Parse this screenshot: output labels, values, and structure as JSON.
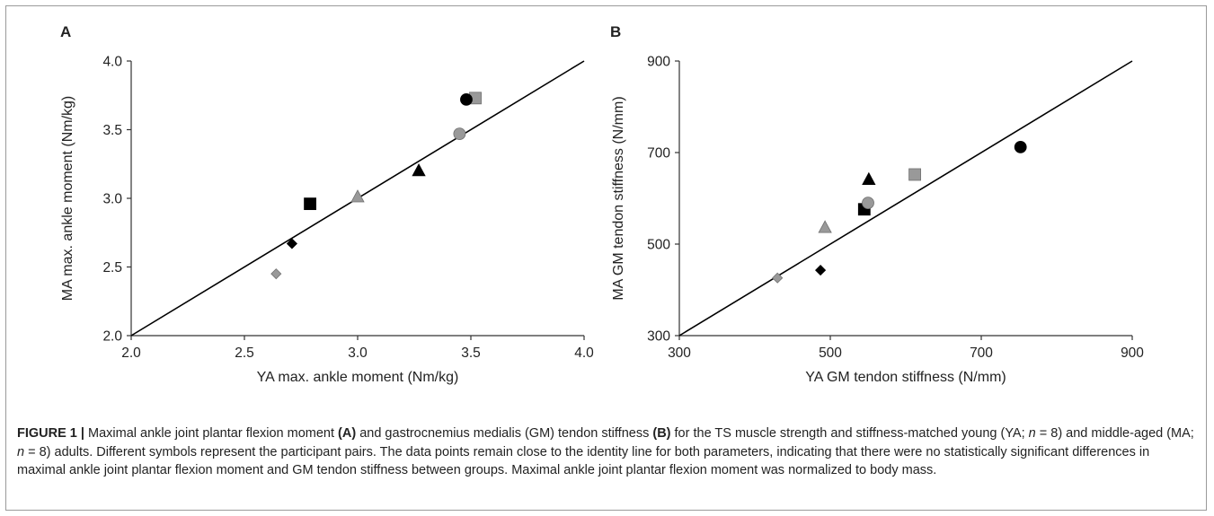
{
  "chart_data": [
    {
      "type": "scatter",
      "panel_label": "A",
      "xlabel": "YA max. ankle moment (Nm/kg)",
      "ylabel": "MA max. ankle moment (Nm/kg)",
      "xlim": [
        2.0,
        4.0
      ],
      "ylim": [
        2.0,
        4.0
      ],
      "xticks": [
        "2.0",
        "2.5",
        "3.0",
        "3.5",
        "4.0"
      ],
      "yticks": [
        "2.0",
        "2.5",
        "3.0",
        "3.5",
        "4.0"
      ],
      "identity_line": true,
      "grid": false,
      "points": [
        {
          "marker": "square",
          "fill": "#000000",
          "x": 2.79,
          "y": 2.96
        },
        {
          "marker": "square",
          "fill": "#999999",
          "x": 3.52,
          "y": 3.73
        },
        {
          "marker": "circle",
          "fill": "#000000",
          "x": 3.48,
          "y": 3.72
        },
        {
          "marker": "circle",
          "fill": "#999999",
          "x": 3.45,
          "y": 3.47
        },
        {
          "marker": "triangle",
          "fill": "#000000",
          "x": 3.27,
          "y": 3.2
        },
        {
          "marker": "triangle",
          "fill": "#999999",
          "x": 3.0,
          "y": 3.01
        },
        {
          "marker": "diamond",
          "fill": "#000000",
          "x": 2.71,
          "y": 2.67
        },
        {
          "marker": "diamond",
          "fill": "#999999",
          "x": 2.64,
          "y": 2.45
        }
      ]
    },
    {
      "type": "scatter",
      "panel_label": "B",
      "xlabel": "YA GM tendon stiffness (N/mm)",
      "ylabel": "MA GM tendon stiffness (N/mm)",
      "xlim": [
        300,
        900
      ],
      "ylim": [
        300,
        900
      ],
      "xticks": [
        "300",
        "500",
        "700",
        "900"
      ],
      "yticks": [
        "300",
        "500",
        "700",
        "900"
      ],
      "identity_line": true,
      "grid": false,
      "points": [
        {
          "marker": "square",
          "fill": "#000000",
          "x": 545,
          "y": 576
        },
        {
          "marker": "square",
          "fill": "#999999",
          "x": 612,
          "y": 652
        },
        {
          "marker": "circle",
          "fill": "#000000",
          "x": 752,
          "y": 712
        },
        {
          "marker": "circle",
          "fill": "#999999",
          "x": 550,
          "y": 590
        },
        {
          "marker": "triangle",
          "fill": "#000000",
          "x": 551,
          "y": 641
        },
        {
          "marker": "triangle",
          "fill": "#999999",
          "x": 493,
          "y": 536
        },
        {
          "marker": "diamond",
          "fill": "#000000",
          "x": 487,
          "y": 443
        },
        {
          "marker": "diamond",
          "fill": "#999999",
          "x": 430,
          "y": 426
        }
      ]
    }
  ],
  "caption": {
    "label": "FIGURE 1 |",
    "seg1": " Maximal ankle joint plantar flexion moment ",
    "ref_a": "(A)",
    "seg2": " and gastrocnemius medialis (GM) tendon stiffness ",
    "ref_b": "(B)",
    "seg3": " for the TS muscle strength and stiffness-matched young (YA; ",
    "n1": "n",
    "seg4": " = 8) and middle-aged (MA; ",
    "n2": "n",
    "seg5": " = 8) adults. Different symbols represent the participant pairs. The data points remain close to the identity line for both parameters, indicating that there were no statistically significant differences in maximal ankle joint plantar flexion moment and GM tendon stiffness between groups. Maximal ankle joint plantar flexion moment was normalized to body mass."
  }
}
